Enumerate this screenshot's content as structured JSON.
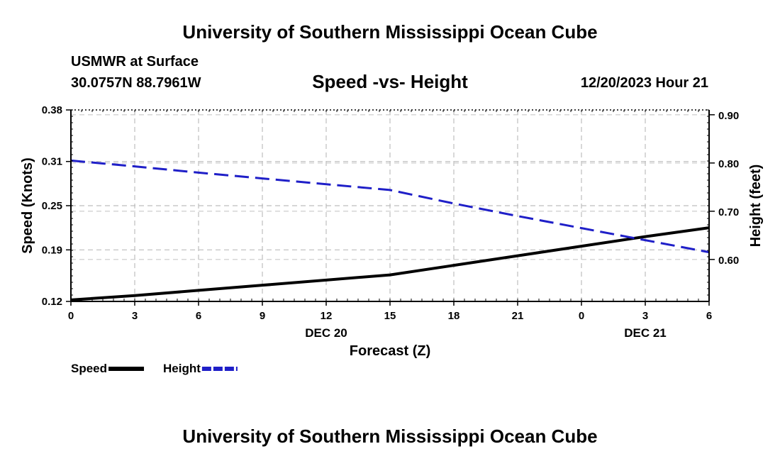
{
  "header": {
    "title": "University of Southern Mississippi Ocean Cube",
    "station": "USMWR at Surface",
    "coords": "30.0757N  88.7961W",
    "subtitle": "Speed -vs- Height",
    "datetime": "12/20/2023 Hour 21"
  },
  "footer": {
    "title": "University of Southern Mississippi Ocean Cube"
  },
  "chart_data": {
    "type": "line",
    "title": "Speed -vs- Height",
    "xlabel": "Forecast (Z)",
    "ylabel": "Speed (Knots)",
    "y2label": "Height (feet)",
    "x": [
      0,
      3,
      6,
      9,
      12,
      15,
      18,
      21,
      24,
      27,
      30
    ],
    "x_tick_labels": [
      "0",
      "3",
      "6",
      "9",
      "12",
      "15",
      "18",
      "21",
      "0",
      "3",
      "6"
    ],
    "date_labels": [
      {
        "text": "DEC 20",
        "x": 12
      },
      {
        "text": "DEC 21",
        "x": 27
      }
    ],
    "xlim": [
      0,
      30
    ],
    "ylim": [
      0.12,
      0.38
    ],
    "y_ticks": [
      0.12,
      0.19,
      0.25,
      0.31,
      0.38
    ],
    "y2lim": [
      0.513,
      0.91
    ],
    "y2_ticks": [
      0.6,
      0.7,
      0.8,
      0.9
    ],
    "series": [
      {
        "name": "Speed",
        "axis": "left",
        "color": "#000000",
        "style": "solid",
        "x": [
          0,
          3,
          6,
          9,
          12,
          15,
          18,
          21,
          24,
          27,
          30
        ],
        "values": [
          0.122,
          0.128,
          0.135,
          0.142,
          0.149,
          0.156,
          0.169,
          0.182,
          0.195,
          0.208,
          0.22
        ]
      },
      {
        "name": "Height",
        "axis": "right",
        "color": "#1f1fc8",
        "style": "dashed",
        "x": [
          0,
          3,
          6,
          9,
          12,
          15,
          18,
          21,
          24,
          27,
          30
        ],
        "values": [
          0.805,
          0.793,
          0.78,
          0.768,
          0.756,
          0.744,
          0.716,
          0.69,
          0.665,
          0.64,
          0.615
        ]
      }
    ],
    "grid": true,
    "legend": "bottom-left"
  }
}
